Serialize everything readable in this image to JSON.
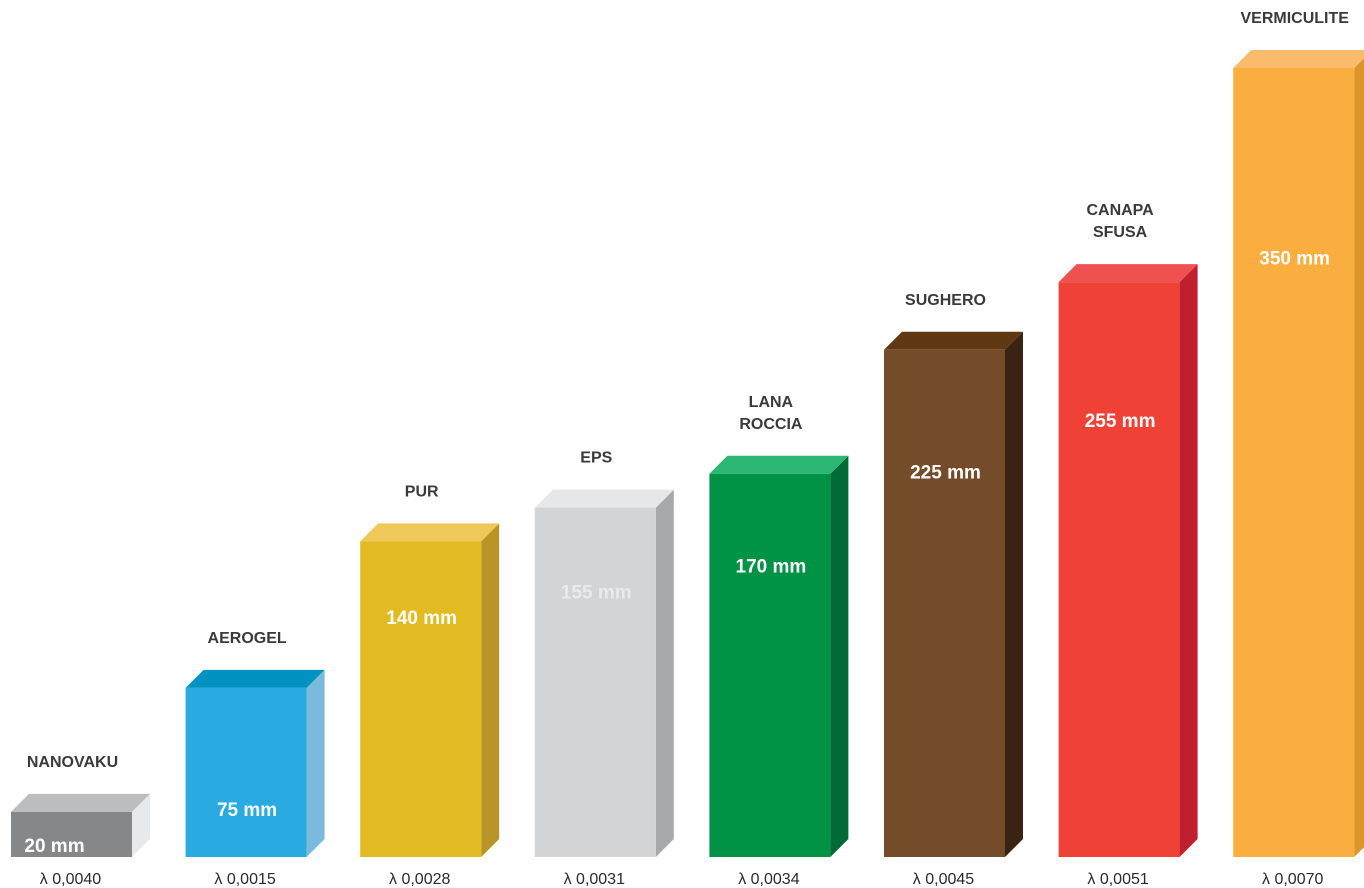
{
  "chart_data": {
    "type": "bar",
    "title": "",
    "xlabel": "",
    "ylabel": "",
    "unit": "mm",
    "ylim": [
      0,
      350
    ],
    "grid": false,
    "categories": [
      [
        "NANOVAKU"
      ],
      [
        "AEROGEL"
      ],
      [
        "PUR"
      ],
      [
        "EPS"
      ],
      [
        "LANA",
        "ROCCIA"
      ],
      [
        "SUGHERO"
      ],
      [
        "CANAPA",
        "SFUSA"
      ],
      [
        "VERMICULITE"
      ]
    ],
    "values": [
      20,
      75,
      140,
      155,
      170,
      225,
      255,
      350
    ],
    "value_labels": [
      "20 mm",
      "75 mm",
      "140 mm",
      "155 mm",
      "170 mm",
      "225 mm",
      "255 mm",
      "350 mm"
    ],
    "lambda_labels": [
      "λ 0,0040",
      "λ 0,0015",
      "λ 0,0028",
      "λ 0,0031",
      "λ 0,0034",
      "λ 0,0045",
      "λ 0,0051",
      "λ 0,0070"
    ],
    "colors": {
      "front": [
        "#868789",
        "#29abe2",
        "#e2bb22",
        "#d3d4d6",
        "#009345",
        "#754c29",
        "#ef4136",
        "#f9ae3f"
      ],
      "top": [
        "#bcbdbf",
        "#0093c2",
        "#efc85a",
        "#e6e7e8",
        "#2bb673",
        "#603813",
        "#ef5151",
        "#fbbb6c"
      ],
      "side": [
        "#e8e9ea",
        "#7bbadc",
        "#b99427",
        "#a7a9ac",
        "#006b36",
        "#3b2314",
        "#c0202d",
        "#dd9428"
      ],
      "value_text": [
        "#ffffff",
        "#ffffff",
        "#ffffff",
        "#e9eaeb",
        "#ffffff",
        "#ffffff",
        "#ffffff",
        "#ffffff"
      ]
    }
  }
}
